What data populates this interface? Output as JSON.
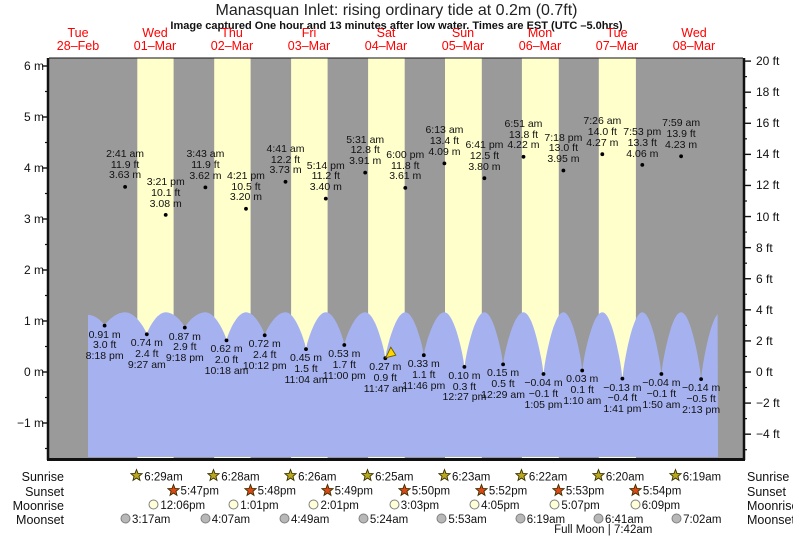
{
  "title": "Manasquan Inlet: rising  ordinary tide at 0.2m (0.7ft)",
  "subtitle": "Image captured One hour and 13 minutes after low water. Times are EST (UTC –5.0hrs)",
  "colors": {
    "night_band": "#9a9a9a",
    "day_band": "#ffffcc",
    "water": "#a6b2f0",
    "date_red": "#ff0000",
    "axis": "#111111",
    "sunrise_star": "#b8a820",
    "sunset_star": "#dd4814",
    "moonrise_circle": "#ffffd8",
    "moonset_circle": "#b8b8b8",
    "current_marker": "#ffd700"
  },
  "chart_data": {
    "type": "area",
    "title": "Manasquan Inlet: rising  ordinary tide at 0.2m (0.7ft)",
    "days": [
      {
        "name": "Tue",
        "date": "28–Feb"
      },
      {
        "name": "Wed",
        "date": "01–Mar"
      },
      {
        "name": "Thu",
        "date": "02–Mar"
      },
      {
        "name": "Fri",
        "date": "03–Mar"
      },
      {
        "name": "Sat",
        "date": "04–Mar"
      },
      {
        "name": "Sun",
        "date": "05–Mar"
      },
      {
        "name": "Mon",
        "date": "06–Mar"
      },
      {
        "name": "Tue",
        "date": "07–Mar"
      },
      {
        "name": "Wed",
        "date": "08–Mar"
      }
    ],
    "y_axis_left": {
      "unit": "m",
      "ticks": [
        6,
        5,
        4,
        3,
        2,
        1,
        0,
        -1
      ]
    },
    "y_axis_right": {
      "unit": "ft",
      "ticks": [
        20,
        18,
        16,
        14,
        12,
        10,
        8,
        6,
        4,
        2,
        0,
        -2,
        -4
      ]
    },
    "tide_events": [
      {
        "day": 0,
        "time": "8:18 pm",
        "type": "low",
        "height_m": 0.91,
        "height_ft": 3.0
      },
      {
        "day": 1,
        "time": "2:41 am",
        "type": "high",
        "height_m": 3.63,
        "height_ft": 11.9
      },
      {
        "day": 1,
        "time": "9:27 am",
        "type": "low",
        "height_m": 0.74,
        "height_ft": 2.4
      },
      {
        "day": 1,
        "time": "3:21 pm",
        "type": "high",
        "height_m": 3.08,
        "height_ft": 10.1
      },
      {
        "day": 1,
        "time": "9:18 pm",
        "type": "low",
        "height_m": 0.87,
        "height_ft": 2.9
      },
      {
        "day": 2,
        "time": "3:43 am",
        "type": "high",
        "height_m": 3.62,
        "height_ft": 11.9
      },
      {
        "day": 2,
        "time": "10:18 am",
        "type": "low",
        "height_m": 0.62,
        "height_ft": 2.0
      },
      {
        "day": 2,
        "time": "4:21 pm",
        "type": "high",
        "height_m": 3.2,
        "height_ft": 10.5
      },
      {
        "day": 2,
        "time": "10:12 pm",
        "type": "low",
        "height_m": 0.72,
        "height_ft": 2.4
      },
      {
        "day": 3,
        "time": "4:41 am",
        "type": "high",
        "height_m": 3.73,
        "height_ft": 12.2
      },
      {
        "day": 3,
        "time": "11:04 am",
        "type": "low",
        "height_m": 0.45,
        "height_ft": 1.5
      },
      {
        "day": 3,
        "time": "5:14 pm",
        "type": "high",
        "height_m": 3.4,
        "height_ft": 11.2
      },
      {
        "day": 3,
        "time": "11:00 pm",
        "type": "low",
        "height_m": 0.53,
        "height_ft": 1.7
      },
      {
        "day": 4,
        "time": "5:31 am",
        "type": "high",
        "height_m": 3.91,
        "height_ft": 12.8
      },
      {
        "day": 4,
        "time": "11:47 am",
        "type": "low",
        "height_m": 0.27,
        "height_ft": 0.9
      },
      {
        "day": 4,
        "time": "6:00 pm",
        "type": "high",
        "height_m": 3.61,
        "height_ft": 11.8
      },
      {
        "day": 4,
        "time": "11:46 pm",
        "type": "low",
        "height_m": 0.33,
        "height_ft": 1.1
      },
      {
        "day": 5,
        "time": "6:13 am",
        "type": "high",
        "height_m": 4.09,
        "height_ft": 13.4
      },
      {
        "day": 5,
        "time": "12:27 pm",
        "type": "low",
        "height_m": 0.1,
        "height_ft": 0.3
      },
      {
        "day": 5,
        "time": "6:41 pm",
        "type": "high",
        "height_m": 3.8,
        "height_ft": 12.5
      },
      {
        "day": 6,
        "time": "12:29 am",
        "type": "low",
        "height_m": 0.15,
        "height_ft": 0.5
      },
      {
        "day": 6,
        "time": "6:51 am",
        "type": "high",
        "height_m": 4.22,
        "height_ft": 13.8
      },
      {
        "day": 6,
        "time": "1:05 pm",
        "type": "low",
        "height_m": -0.04,
        "height_ft": -0.1
      },
      {
        "day": 6,
        "time": "7:18 pm",
        "type": "high",
        "height_m": 3.95,
        "height_ft": 13.0
      },
      {
        "day": 7,
        "time": "1:10 am",
        "type": "low",
        "height_m": 0.03,
        "height_ft": 0.1
      },
      {
        "day": 7,
        "time": "7:26 am",
        "type": "high",
        "height_m": 4.27,
        "height_ft": 14.0
      },
      {
        "day": 7,
        "time": "1:41 pm",
        "type": "low",
        "height_m": -0.13,
        "height_ft": -0.4
      },
      {
        "day": 7,
        "time": "7:53 pm",
        "type": "high",
        "height_m": 4.06,
        "height_ft": 13.3
      },
      {
        "day": 8,
        "time": "1:50 am",
        "type": "low",
        "height_m": -0.04,
        "height_ft": -0.1
      },
      {
        "day": 8,
        "time": "7:59 am",
        "type": "high",
        "height_m": 4.23,
        "height_ft": 13.9
      },
      {
        "day": 8,
        "time": "2:13 pm",
        "type": "low",
        "height_m": -0.14,
        "height_ft": -0.5
      }
    ],
    "current_tide_index": 14,
    "astro": {
      "row_labels": [
        "Sunrise",
        "Sunset",
        "Moonrise",
        "Moonset"
      ],
      "sunrise": [
        {
          "day": 1,
          "time": "6:29am"
        },
        {
          "day": 2,
          "time": "6:28am"
        },
        {
          "day": 3,
          "time": "6:26am"
        },
        {
          "day": 4,
          "time": "6:25am"
        },
        {
          "day": 5,
          "time": "6:23am"
        },
        {
          "day": 6,
          "time": "6:22am"
        },
        {
          "day": 7,
          "time": "6:20am"
        },
        {
          "day": 8,
          "time": "6:19am"
        }
      ],
      "sunset": [
        {
          "day": 1,
          "time": "5:47pm"
        },
        {
          "day": 2,
          "time": "5:48pm"
        },
        {
          "day": 3,
          "time": "5:49pm"
        },
        {
          "day": 4,
          "time": "5:50pm"
        },
        {
          "day": 5,
          "time": "5:52pm"
        },
        {
          "day": 6,
          "time": "5:53pm"
        },
        {
          "day": 7,
          "time": "5:54pm"
        }
      ],
      "moonrise": [
        {
          "day": 1,
          "time": "12:06pm"
        },
        {
          "day": 2,
          "time": "1:01pm"
        },
        {
          "day": 3,
          "time": "2:01pm"
        },
        {
          "day": 4,
          "time": "3:03pm"
        },
        {
          "day": 5,
          "time": "4:05pm"
        },
        {
          "day": 6,
          "time": "5:07pm"
        },
        {
          "day": 7,
          "time": "6:09pm"
        }
      ],
      "moonset": [
        {
          "day": 1,
          "time": "3:17am"
        },
        {
          "day": 2,
          "time": "4:07am"
        },
        {
          "day": 3,
          "time": "4:49am"
        },
        {
          "day": 4,
          "time": "5:24am"
        },
        {
          "day": 5,
          "time": "5:53am"
        },
        {
          "day": 6,
          "time": "6:19am"
        },
        {
          "day": 7,
          "time": "6:41am"
        },
        {
          "day": 8,
          "time": "7:02am"
        }
      ],
      "moon_phase": {
        "day": 7,
        "time": "7:42am",
        "label": "Full Moon | 7:42am"
      }
    }
  }
}
